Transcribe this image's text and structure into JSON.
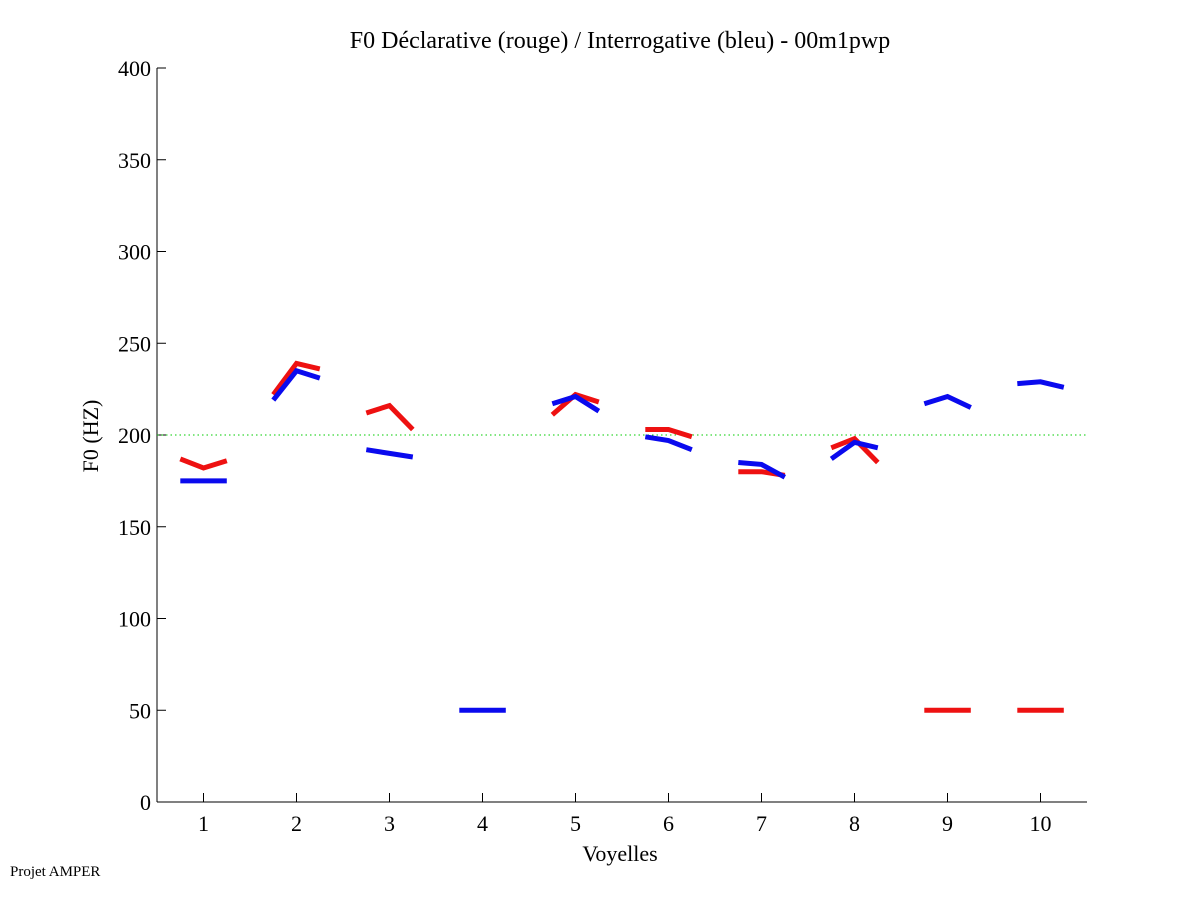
{
  "footer": "Projet AMPER",
  "chart_data": {
    "type": "line",
    "title": "F0 Déclarative (rouge) / Interrogative (bleu) - 00m1pwp",
    "xlabel": "Voyelles",
    "ylabel": "F0 (HZ)",
    "xlim": [
      0.5,
      10.5
    ],
    "ylim": [
      0,
      400
    ],
    "xticks": [
      1,
      2,
      3,
      4,
      5,
      6,
      7,
      8,
      9,
      10
    ],
    "yticks": [
      0,
      50,
      100,
      150,
      200,
      250,
      300,
      350,
      400
    ],
    "reference_line": {
      "y": 200,
      "color": "#00cc00",
      "style": "dotted"
    },
    "grid": false,
    "colors": {
      "declarative": "#ee1111",
      "interrogative": "#0a0aee"
    },
    "series": [
      {
        "key": "declarative",
        "color": "#ee1111",
        "segments": [
          {
            "vowel": 1,
            "points": [
              [
                0.75,
                187
              ],
              [
                1.0,
                182
              ],
              [
                1.25,
                186
              ]
            ]
          },
          {
            "vowel": 2,
            "points": [
              [
                1.75,
                222
              ],
              [
                2.0,
                239
              ],
              [
                2.25,
                236
              ]
            ]
          },
          {
            "vowel": 3,
            "points": [
              [
                2.75,
                212
              ],
              [
                3.0,
                216
              ],
              [
                3.25,
                203
              ]
            ]
          },
          {
            "vowel": 5,
            "points": [
              [
                4.75,
                211
              ],
              [
                5.0,
                222
              ],
              [
                5.25,
                218
              ]
            ]
          },
          {
            "vowel": 6,
            "points": [
              [
                5.75,
                203
              ],
              [
                6.0,
                203
              ],
              [
                6.25,
                199
              ]
            ]
          },
          {
            "vowel": 7,
            "points": [
              [
                6.75,
                180
              ],
              [
                7.0,
                180
              ],
              [
                7.25,
                178
              ]
            ]
          },
          {
            "vowel": 8,
            "points": [
              [
                7.75,
                193
              ],
              [
                8.0,
                198
              ],
              [
                8.25,
                185
              ]
            ]
          },
          {
            "vowel": 9,
            "points": [
              [
                8.75,
                50
              ],
              [
                9.0,
                50
              ],
              [
                9.25,
                50
              ]
            ]
          },
          {
            "vowel": 10,
            "points": [
              [
                9.75,
                50
              ],
              [
                10.0,
                50
              ],
              [
                10.25,
                50
              ]
            ]
          }
        ]
      },
      {
        "key": "interrogative",
        "color": "#0a0aee",
        "segments": [
          {
            "vowel": 1,
            "points": [
              [
                0.75,
                175
              ],
              [
                1.0,
                175
              ],
              [
                1.25,
                175
              ]
            ]
          },
          {
            "vowel": 2,
            "points": [
              [
                1.75,
                219
              ],
              [
                2.0,
                235
              ],
              [
                2.25,
                231
              ]
            ]
          },
          {
            "vowel": 3,
            "points": [
              [
                2.75,
                192
              ],
              [
                3.0,
                190
              ],
              [
                3.25,
                188
              ]
            ]
          },
          {
            "vowel": 4,
            "points": [
              [
                3.75,
                50
              ],
              [
                4.0,
                50
              ],
              [
                4.25,
                50
              ]
            ]
          },
          {
            "vowel": 5,
            "points": [
              [
                4.75,
                217
              ],
              [
                5.0,
                221
              ],
              [
                5.25,
                213
              ]
            ]
          },
          {
            "vowel": 6,
            "points": [
              [
                5.75,
                199
              ],
              [
                6.0,
                197
              ],
              [
                6.25,
                192
              ]
            ]
          },
          {
            "vowel": 7,
            "points": [
              [
                6.75,
                185
              ],
              [
                7.0,
                184
              ],
              [
                7.25,
                177
              ]
            ]
          },
          {
            "vowel": 8,
            "points": [
              [
                7.75,
                187
              ],
              [
                8.0,
                196
              ],
              [
                8.25,
                193
              ]
            ]
          },
          {
            "vowel": 9,
            "points": [
              [
                8.75,
                217
              ],
              [
                9.0,
                221
              ],
              [
                9.25,
                215
              ]
            ]
          },
          {
            "vowel": 10,
            "points": [
              [
                9.75,
                228
              ],
              [
                10.0,
                229
              ],
              [
                10.25,
                226
              ]
            ]
          }
        ]
      }
    ]
  }
}
